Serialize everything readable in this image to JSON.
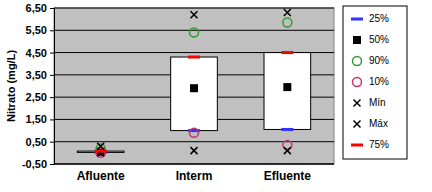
{
  "chart_data": {
    "type": "box",
    "y_label": "Nitrato (mg/L)",
    "categories": [
      "Afluente",
      "Interm",
      "Efluente"
    ],
    "series": [
      {
        "name": "25%",
        "color": "#3333ff",
        "marker": "dash",
        "values": [
          0.02,
          1.0,
          1.05
        ]
      },
      {
        "name": "50%",
        "color": "#000000",
        "marker": "square",
        "values": [
          0.05,
          2.9,
          2.95
        ]
      },
      {
        "name": "90%",
        "color": "#339933",
        "marker": "circle",
        "values": [
          0.2,
          5.4,
          5.85
        ]
      },
      {
        "name": "10%",
        "color": "#cc3366",
        "marker": "circle",
        "values": [
          0.0,
          0.9,
          0.35
        ]
      },
      {
        "name": "Mín",
        "color": "#000000",
        "marker": "x",
        "values": [
          0.0,
          0.1,
          0.1
        ]
      },
      {
        "name": "Máx",
        "color": "#000000",
        "marker": "x",
        "values": [
          0.3,
          6.2,
          6.3
        ]
      },
      {
        "name": "75%",
        "color": "#ff0000",
        "marker": "dash",
        "values": [
          0.08,
          4.3,
          4.5
        ]
      }
    ],
    "ylim": [
      -0.5,
      6.5
    ],
    "yticks": [
      {
        "value": -0.5,
        "label": "-0,50"
      },
      {
        "value": 0.5,
        "label": "0,50"
      },
      {
        "value": 1.5,
        "label": "1,50"
      },
      {
        "value": 2.5,
        "label": "2,50"
      },
      {
        "value": 3.5,
        "label": "3,50"
      },
      {
        "value": 4.5,
        "label": "4,50"
      },
      {
        "value": 5.5,
        "label": "5,50"
      },
      {
        "value": 6.5,
        "label": "6,50"
      }
    ],
    "grid": true,
    "legend": "right"
  }
}
